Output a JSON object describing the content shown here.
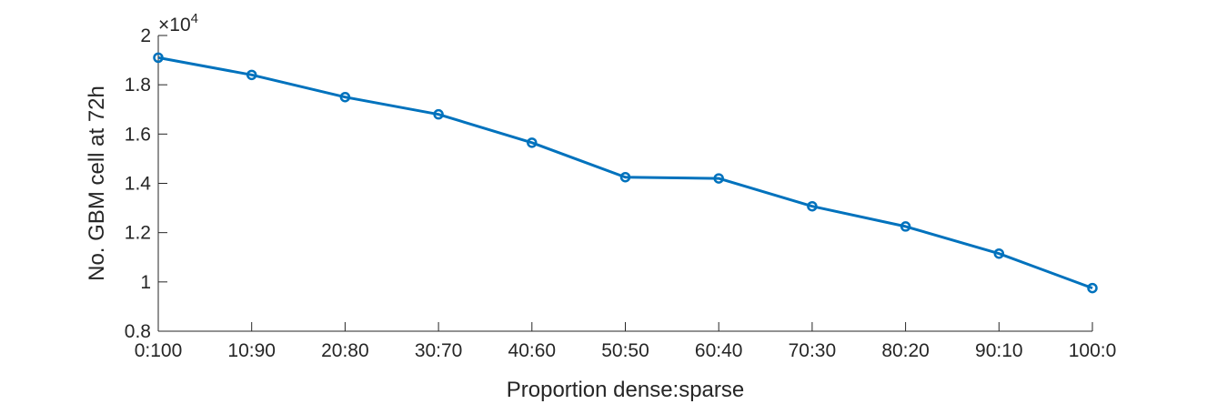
{
  "chart_data": {
    "type": "line",
    "xlabel": "Proportion dense:sparse",
    "ylabel": "No. GBM cell at 72h",
    "y_exponent_label": "×10",
    "y_exponent_power": "4",
    "categories": [
      "0:100",
      "10:90",
      "20:80",
      "30:70",
      "40:60",
      "50:50",
      "60:40",
      "70:30",
      "80:20",
      "90:10",
      "100:0"
    ],
    "series": [
      {
        "values": [
          19100,
          18400,
          17500,
          16800,
          15650,
          14250,
          14200,
          13070,
          12250,
          11150,
          9750
        ],
        "color": "#0072BD",
        "marker": "circle"
      }
    ],
    "ylim": [
      8000,
      20000
    ],
    "yticks": [
      8000,
      10000,
      12000,
      14000,
      16000,
      18000,
      20000
    ],
    "ytick_labels": [
      "0.8",
      "1",
      "1.2",
      "1.4",
      "1.6",
      "1.8",
      "2"
    ],
    "grid": false,
    "legend": "none"
  }
}
